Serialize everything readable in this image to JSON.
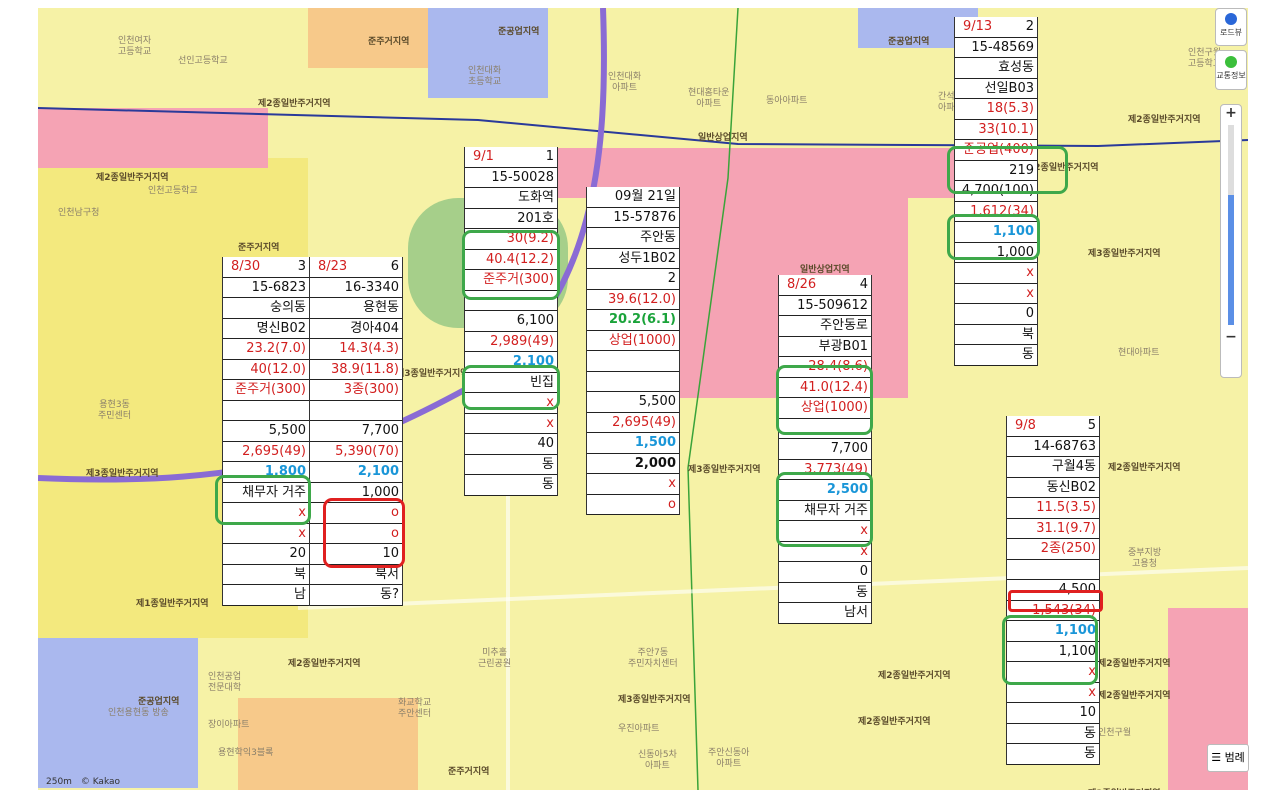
{
  "map": {
    "zone_labels": [
      "준주거지역",
      "준공업지역",
      "준공업지역",
      "제2종일반주거지역",
      "제2종일반주거지역",
      "제2종일반주거지역",
      "일반상업지역",
      "일반상업지역",
      "준주거지역",
      "제3종일반주거지역",
      "제3종일반주거지역",
      "제1종일반주거지역",
      "제2종일반주거지역",
      "준공업지역",
      "제3종일반주거지역",
      "제3종일반주거지역",
      "제2종일반주거지역",
      "준주거지역",
      "제2종일반주거지역",
      "제2종일반주거지역",
      "제3종일반주거지역",
      "제2종일반주거지역",
      "제2종일반주거지역",
      "제2종일반주거지역",
      "제2종일반주거지역"
    ],
    "place_labels": [
      "인천여자\n고등학교",
      "선인고등학교",
      "인천대화\n초등학교",
      "인천대화\n아파트",
      "현대홈타운\n아파트",
      "동아아파트",
      "인천남구청",
      "인천고등학교",
      "용현3동\n주민센터",
      "인천공업\n전문대학",
      "인천용현동 방송",
      "장이아파트",
      "용현학익3블록",
      "주안7동\n주민자치센터",
      "미추홀\n근린공원",
      "화교학교\n주안센터",
      "우진아파트",
      "간석동\n아파트",
      "인천구월\n고등학교",
      "중부지방\n고용청",
      "현대아파트",
      "인천구월",
      "신동아5차\n아파트",
      "주안신동아\n아파트"
    ],
    "scale": "250m",
    "copyright": "© Kakao"
  },
  "tables": [
    {
      "id": "830",
      "date": "8/30",
      "num": "3",
      "rows": [
        "15-6823",
        "숭의동",
        "명신B02",
        "23.2(7.0)",
        "40(12.0)",
        "준주거(300)",
        "",
        "5,500",
        "2,695(49)",
        "1,800",
        "채무자 거주",
        "x",
        "x",
        "20",
        "북",
        "남"
      ]
    },
    {
      "id": "823",
      "date": "8/23",
      "num": "6",
      "rows": [
        "16-3340",
        "용현동",
        "경아404",
        "14.3(4.3)",
        "38.9(11.8)",
        "3종(300)",
        "",
        "7,700",
        "5,390(70)",
        "2,100",
        "1,000",
        "o",
        "o",
        "10",
        "북서",
        "동?"
      ]
    },
    {
      "id": "91",
      "date": "9/1",
      "num": "1",
      "rows": [
        "15-50028",
        "도화역",
        "201호",
        "30(9.2)",
        "40.4(12.2)",
        "준주거(300)",
        "",
        "6,100",
        "2,989(49)",
        "2,100",
        "빈집",
        "x",
        "x",
        "40",
        "동",
        "동"
      ]
    },
    {
      "id": "921",
      "rows": [
        "09월 21일",
        "15-57876",
        "주안동",
        "성두1B02",
        "2",
        "39.6(12.0)",
        "20.2(6.1)",
        "상업(1000)",
        "",
        "",
        "5,500",
        "2,695(49)",
        "1,500",
        "2,000",
        "x",
        "o"
      ]
    },
    {
      "id": "826",
      "date": "8/26",
      "num": "4",
      "rows": [
        "15-509612",
        "주안동로",
        "부광B01",
        "28.4(8.6)",
        "41.0(12.4)",
        "상업(1000)",
        "",
        "7,700",
        "3,773(49)",
        "2,500",
        "채무자 거주",
        "x",
        "x",
        "0",
        "동",
        "남서"
      ]
    },
    {
      "id": "913",
      "date": "9/13",
      "num": "2",
      "rows": [
        "15-48569",
        "효성동",
        "선일B03",
        "18(5.3)",
        "33(10.1)",
        "준공업(400)",
        "219",
        "4,700(100)",
        "1,612(34)",
        "1,100",
        "1,000",
        "x",
        "x",
        "0",
        "북",
        "동"
      ]
    },
    {
      "id": "98",
      "date": "9/8",
      "num": "5",
      "rows": [
        "14-68763",
        "구월4동",
        "동신B02",
        "11.5(3.5)",
        "31.1(9.7)",
        "2종(250)",
        "",
        "4,500",
        "1,543(34)",
        "1,100",
        "1,100",
        "x",
        "x",
        "10",
        "동",
        "동"
      ]
    }
  ],
  "controls": {
    "roadview": "로드뷰",
    "traffic": "교통정보",
    "legend": "범례",
    "zoom_in": "+",
    "zoom_out": "−"
  },
  "colors": {
    "yellow": "#f3ee8e",
    "pink": "#f5a3b4",
    "blue_zone": "#aab8ee",
    "orange": "#f7c98a",
    "green": "#a6cf8a",
    "purple": "#8a6bd4",
    "highlight_green": "#3ea84a",
    "highlight_red": "#e02020",
    "value_red": "#d21f1f",
    "value_blue": "#1a96d8"
  }
}
